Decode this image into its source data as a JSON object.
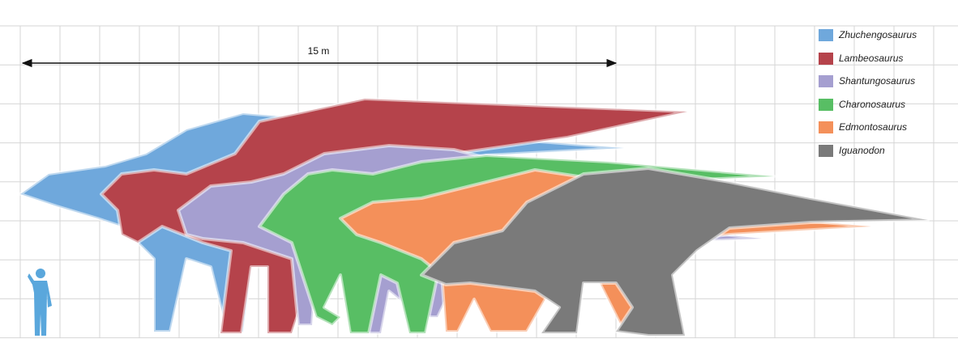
{
  "scale_bar": {
    "label": "15 m"
  },
  "legend": [
    {
      "name": "Zhuchengosaurus",
      "color": "#6fa8dc"
    },
    {
      "name": "Lambeosaurus",
      "color": "#b5434b"
    },
    {
      "name": "Shantungosaurus",
      "color": "#a59fd0"
    },
    {
      "name": "Charonosaurus",
      "color": "#58be64"
    },
    {
      "name": "Edmontosaurus",
      "color": "#f4905a"
    },
    {
      "name": "Iguanodon",
      "color": "#7a7a7a"
    }
  ]
}
